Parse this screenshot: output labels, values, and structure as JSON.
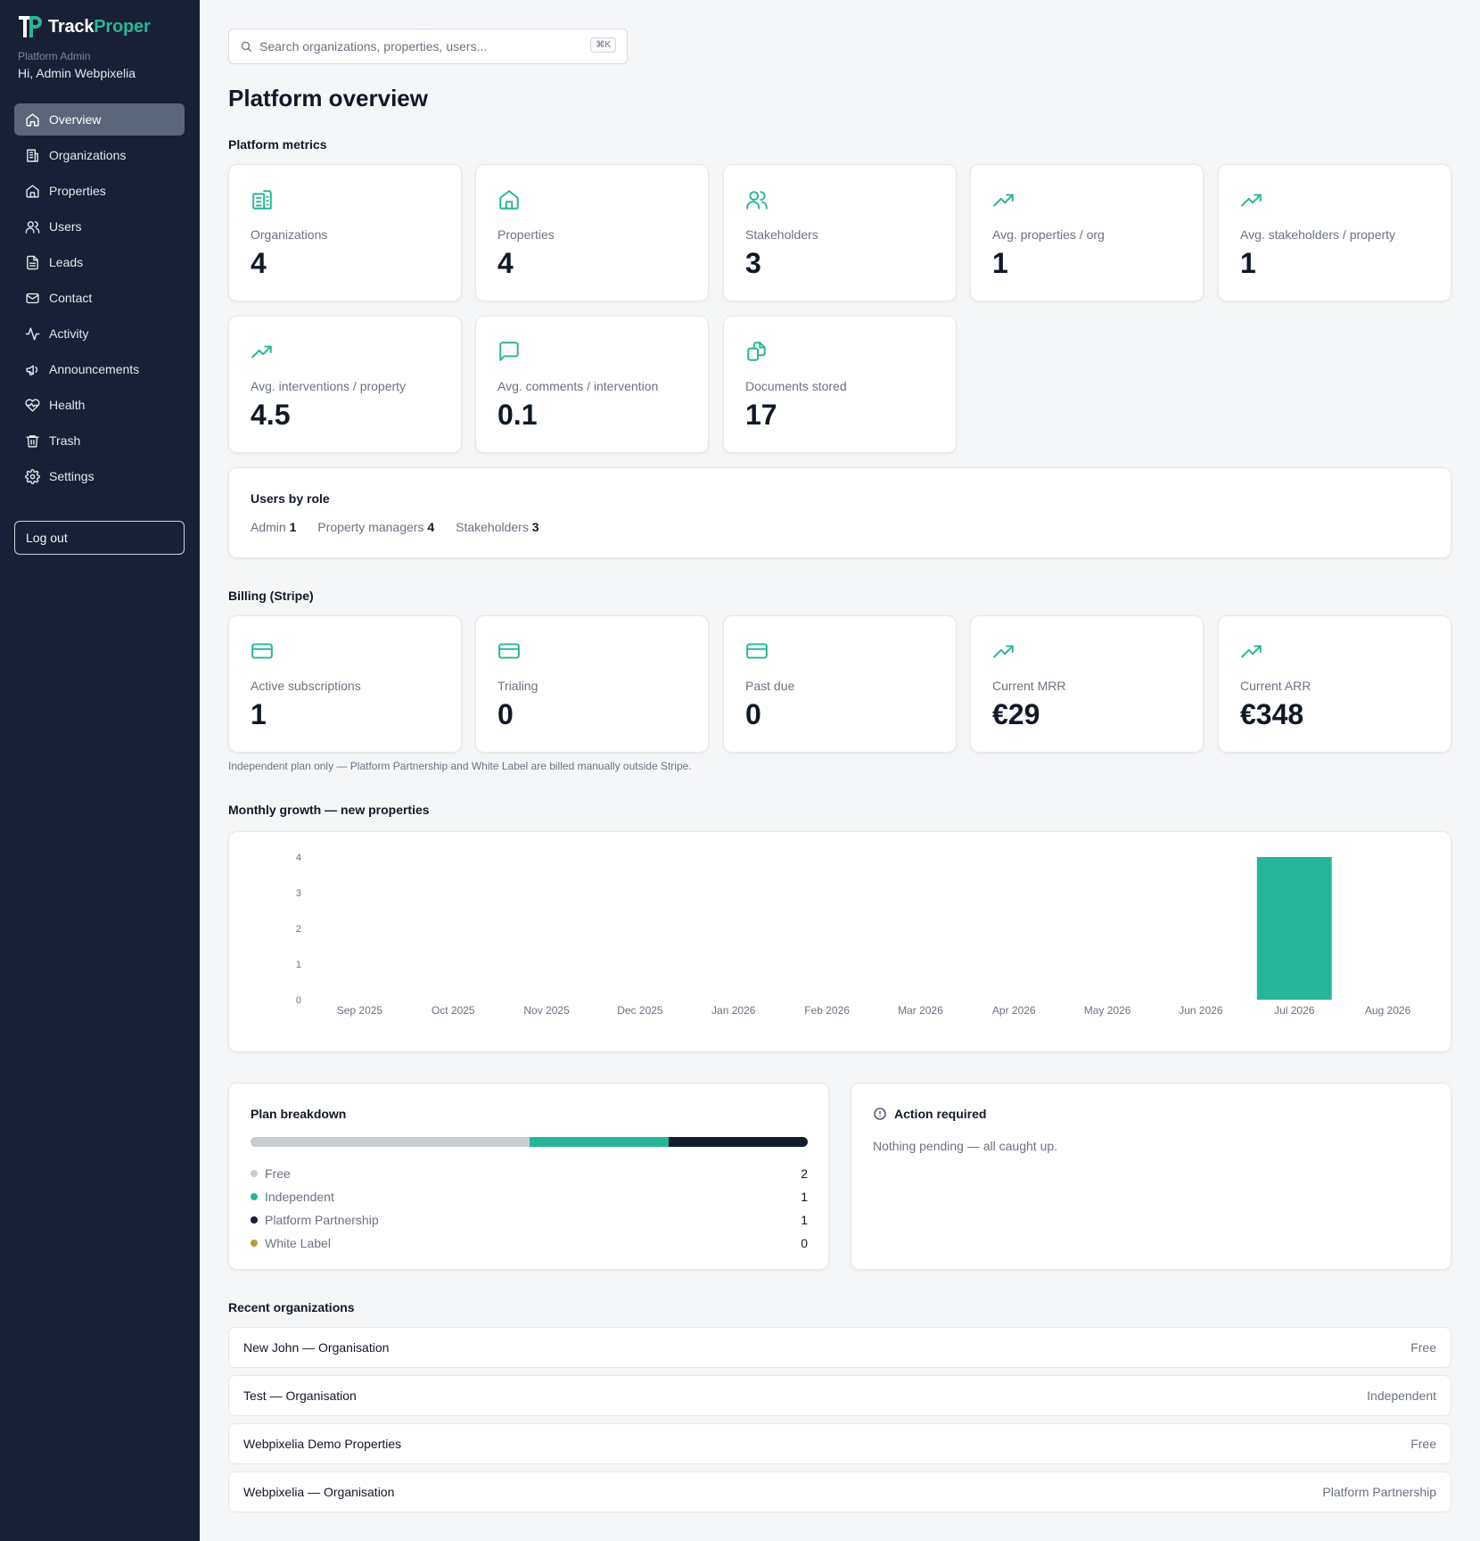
{
  "brand": {
    "name_a": "Track",
    "name_b": "Proper",
    "accent": "#2bb596",
    "sidebar_bg": "#172035"
  },
  "sidebar": {
    "role_label": "Platform Admin",
    "greeting": "Hi, Admin Webpixelia",
    "items": [
      {
        "label": "Overview",
        "icon": "home-icon",
        "active": true
      },
      {
        "label": "Organizations",
        "icon": "building-icon"
      },
      {
        "label": "Properties",
        "icon": "house-icon"
      },
      {
        "label": "Users",
        "icon": "users-icon"
      },
      {
        "label": "Leads",
        "icon": "document-icon"
      },
      {
        "label": "Contact",
        "icon": "mail-icon"
      },
      {
        "label": "Activity",
        "icon": "activity-icon"
      },
      {
        "label": "Announcements",
        "icon": "megaphone-icon"
      },
      {
        "label": "Health",
        "icon": "heart-pulse-icon"
      },
      {
        "label": "Trash",
        "icon": "trash-icon"
      },
      {
        "label": "Settings",
        "icon": "gear-icon"
      }
    ],
    "logout_label": "Log out"
  },
  "search": {
    "placeholder": "Search organizations, properties, users...",
    "shortcut": "⌘K"
  },
  "page_title": "Platform overview",
  "platform_metrics": {
    "label": "Platform metrics",
    "cards": [
      {
        "label": "Organizations",
        "value": "4",
        "icon": "building-icon"
      },
      {
        "label": "Properties",
        "value": "4",
        "icon": "house-icon"
      },
      {
        "label": "Stakeholders",
        "value": "3",
        "icon": "users-icon"
      },
      {
        "label": "Avg. properties / org",
        "value": "1",
        "icon": "trending-up-icon"
      },
      {
        "label": "Avg. stakeholders / property",
        "value": "1",
        "icon": "trending-up-icon"
      },
      {
        "label": "Avg. interventions / property",
        "value": "4.5",
        "icon": "trending-up-icon"
      },
      {
        "label": "Avg. comments / intervention",
        "value": "0.1",
        "icon": "comment-icon"
      },
      {
        "label": "Documents stored",
        "value": "17",
        "icon": "documents-icon"
      }
    ]
  },
  "users_by_role": {
    "title": "Users by role",
    "roles": [
      {
        "label": "Admin",
        "count": "1"
      },
      {
        "label": "Property managers",
        "count": "4"
      },
      {
        "label": "Stakeholders",
        "count": "3"
      }
    ]
  },
  "billing": {
    "label": "Billing (Stripe)",
    "cards": [
      {
        "label": "Active subscriptions",
        "value": "1",
        "icon": "credit-card-icon"
      },
      {
        "label": "Trialing",
        "value": "0",
        "icon": "credit-card-icon"
      },
      {
        "label": "Past due",
        "value": "0",
        "icon": "credit-card-icon"
      },
      {
        "label": "Current MRR",
        "value": "€29",
        "icon": "trending-up-icon"
      },
      {
        "label": "Current ARR",
        "value": "€348",
        "icon": "trending-up-icon"
      }
    ],
    "note": "Independent plan only — Platform Partnership and White Label are billed manually outside Stripe."
  },
  "growth": {
    "label": "Monthly growth — new properties"
  },
  "chart_data": {
    "type": "bar",
    "title": "Monthly growth — new properties",
    "categories": [
      "Sep 2025",
      "Oct 2025",
      "Nov 2025",
      "Dec 2025",
      "Jan 2026",
      "Feb 2026",
      "Mar 2026",
      "Apr 2026",
      "May 2026",
      "Jun 2026",
      "Jul 2026",
      "Aug 2026"
    ],
    "values": [
      0,
      0,
      0,
      0,
      0,
      0,
      0,
      0,
      0,
      0,
      4,
      0
    ],
    "yticks": [
      0,
      1,
      2,
      3,
      4
    ],
    "ylim": [
      0,
      4
    ],
    "color": "#26b597",
    "grid": false
  },
  "plan_breakdown": {
    "title": "Plan breakdown",
    "plans": [
      {
        "label": "Free",
        "count": "2",
        "value": 2,
        "color": "#c9ccd1"
      },
      {
        "label": "Independent",
        "count": "1",
        "value": 1,
        "color": "#26b597"
      },
      {
        "label": "Platform Partnership",
        "count": "1",
        "value": 1,
        "color": "#141c2e"
      },
      {
        "label": "White Label",
        "count": "0",
        "value": 0,
        "color": "#b89a3e"
      }
    ]
  },
  "action_required": {
    "title": "Action required",
    "message": "Nothing pending — all caught up."
  },
  "recent_orgs": {
    "label": "Recent organizations",
    "rows": [
      {
        "name": "New John — Organisation",
        "plan": "Free"
      },
      {
        "name": "Test — Organisation",
        "plan": "Independent"
      },
      {
        "name": "Webpixelia Demo Properties",
        "plan": "Free"
      },
      {
        "name": "Webpixelia — Organisation",
        "plan": "Platform Partnership"
      }
    ]
  }
}
